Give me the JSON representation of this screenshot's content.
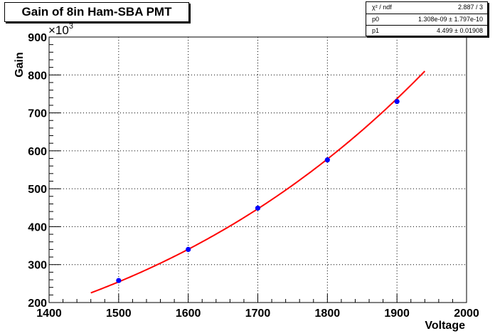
{
  "chart_data": {
    "type": "scatter",
    "title": "Gain of 8in Ham-SBA PMT",
    "xlabel": "Voltage",
    "ylabel": "Gain",
    "y_multiplier_label": "×10",
    "y_multiplier_exponent": "3",
    "xlim": [
      1400,
      2000
    ],
    "ylim": [
      200,
      900
    ],
    "x_ticks": [
      1400,
      1500,
      1600,
      1700,
      1800,
      1900,
      2000
    ],
    "y_ticks": [
      200,
      300,
      400,
      500,
      600,
      700,
      800,
      900
    ],
    "x_tick_labels": [
      "1400",
      "1500",
      "1600",
      "1700",
      "1800",
      "1900",
      "2000"
    ],
    "y_tick_labels": [
      "200",
      "300",
      "400",
      "500",
      "600",
      "700",
      "800",
      "900"
    ],
    "grid": true,
    "series": [
      {
        "x": [
          1500,
          1600,
          1700,
          1800,
          1900
        ],
        "y": [
          258,
          340,
          449,
          576,
          730
        ],
        "marker_color": "#0000ff"
      }
    ],
    "fit": {
      "function": "p0 * x^p1",
      "x_range": [
        1460,
        1940
      ],
      "p0": 1.308e-09,
      "p1": 4.499,
      "line_color": "#ff0000"
    },
    "stats": [
      {
        "key": "χ² / ndf",
        "value": "2.887 / 3"
      },
      {
        "key": "p0",
        "value": "1.308e-09 ± 1.797e-10"
      },
      {
        "key": "p1",
        "value": "4.499 ± 0.01908"
      }
    ]
  }
}
